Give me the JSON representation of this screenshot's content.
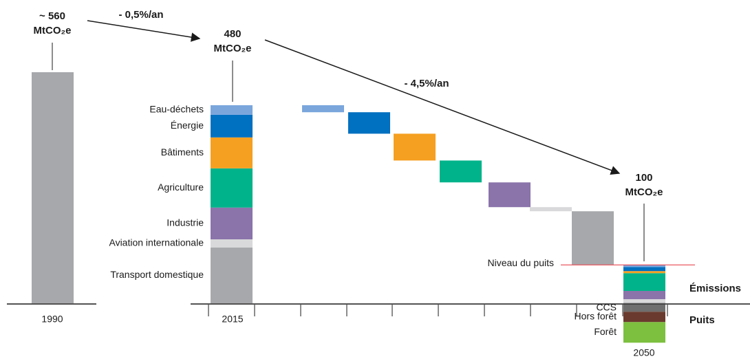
{
  "chart_data": {
    "type": "waterfall",
    "unit": "MtCO₂e",
    "categories": [
      "1990",
      "2015",
      "2050"
    ],
    "totals": [
      560,
      480,
      100
    ],
    "total_labels": [
      "~ 560",
      "480",
      "100"
    ],
    "rates": [
      "- 0,5%/an",
      "- 4,5%/an"
    ],
    "total_color": "#a7a8ab",
    "sectors": [
      {
        "name": "Eau-déchets",
        "color": "#7aa6dc",
        "value_2015": 23,
        "reduction": 17,
        "value_2050": 5
      },
      {
        "name": "Énergie",
        "color": "#0070c0",
        "value_2015": 55,
        "reduction": 52,
        "value_2050": 10
      },
      {
        "name": "Bâtiments",
        "color": "#f5a021",
        "value_2015": 75,
        "reduction": 65,
        "value_2050": 5
      },
      {
        "name": "Agriculture",
        "color": "#00b38a",
        "value_2015": 95,
        "reduction": 53,
        "value_2050": 43
      },
      {
        "name": "Industrie",
        "color": "#8a74aa",
        "value_2015": 77,
        "reduction": 60,
        "value_2050": 20
      },
      {
        "name": "Aviation internationale",
        "color": "#d9d9db",
        "value_2015": 20,
        "reduction": 10,
        "value_2050": 8
      },
      {
        "name": "Transport domestique",
        "color": "#a7a8ab",
        "value_2015": 135,
        "reduction": 130,
        "value_2050": 2
      }
    ],
    "sinks": [
      {
        "name": "CCS",
        "color": "#6f6f6f",
        "value": -18
      },
      {
        "name": "Hors forêt",
        "color": "#6b3a2e",
        "value": -25
      },
      {
        "name": "Forêt",
        "color": "#7dbf3f",
        "value": -50
      }
    ],
    "annotations": {
      "sink_level": "Niveau du puits",
      "emissions": "Émissions",
      "sinks": "Puits"
    }
  }
}
